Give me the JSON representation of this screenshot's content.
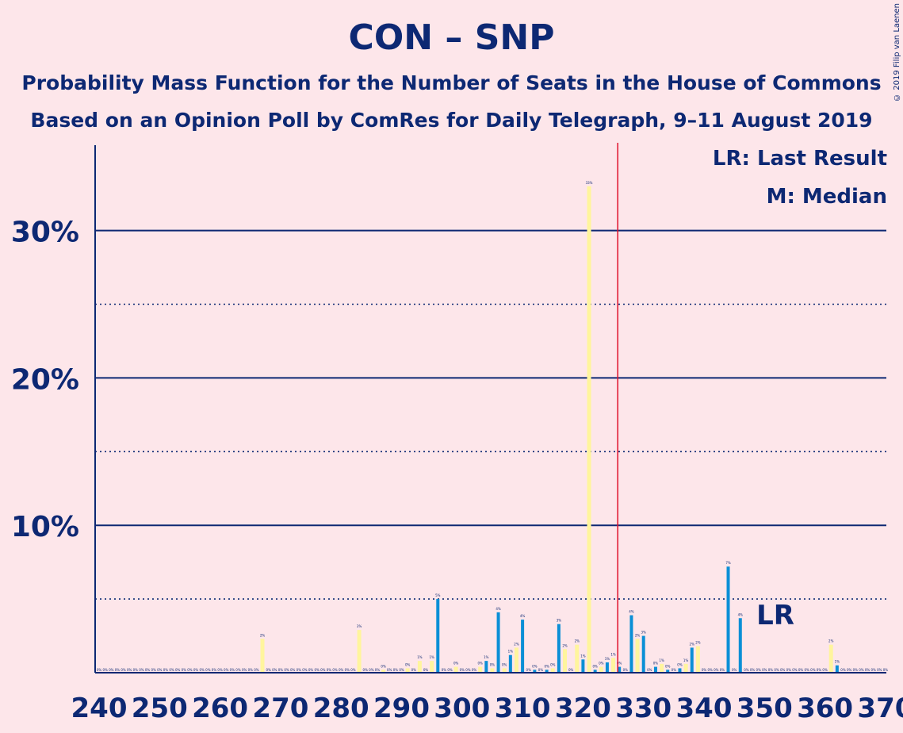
{
  "title": "CON – SNP",
  "subtitle1": "Probability Mass Function for the Number of Seats in the House of Commons",
  "subtitle2": "Based on an Opinion Poll by ComRes for Daily Telegraph, 9–11 August 2019",
  "copyright": "© 2019 Filip van Laenen",
  "legend": {
    "last_result": "LR: Last Result",
    "median": "M: Median"
  },
  "colors": {
    "background": "#fde6ea",
    "text": "#0d2873",
    "bar_blue": "#0a8fd6",
    "bar_yellow": "#fff59d",
    "last_result_line": "#e0102a"
  },
  "chart_data": {
    "type": "bar",
    "title": "CON – SNP",
    "xlim": [
      240,
      370
    ],
    "ylim": [
      0,
      36
    ],
    "x_ticks": [
      "240",
      "250",
      "260",
      "270",
      "280",
      "290",
      "300",
      "310",
      "320",
      "330",
      "340",
      "350",
      "360",
      "370"
    ],
    "y_ticks": [
      {
        "value": 10,
        "label": "10%"
      },
      {
        "value": 20,
        "label": "20%"
      },
      {
        "value": 30,
        "label": "30%"
      }
    ],
    "dotted_gridlines": [
      5,
      15,
      25
    ],
    "last_result_seat": 326,
    "last_result_label": "LR",
    "median_seat": 321,
    "series": [
      {
        "name": "CON – SNP",
        "points": [
          [
            267,
            2.3
          ],
          [
            283,
            2.9
          ],
          [
            287,
            0.2
          ],
          [
            291,
            0.3
          ],
          [
            293,
            0.8
          ],
          [
            295,
            0.8
          ],
          [
            296,
            5.0
          ],
          [
            299,
            0.4
          ],
          [
            303,
            0.4
          ],
          [
            304,
            0.8
          ],
          [
            305,
            0.3
          ],
          [
            306,
            4.1
          ],
          [
            307,
            0.3
          ],
          [
            308,
            1.2
          ],
          [
            309,
            1.7
          ],
          [
            310,
            3.6
          ],
          [
            312,
            0.2
          ],
          [
            314,
            0.2
          ],
          [
            315,
            0.3
          ],
          [
            316,
            3.3
          ],
          [
            317,
            1.6
          ],
          [
            319,
            1.9
          ],
          [
            320,
            0.9
          ],
          [
            321,
            33.0
          ],
          [
            322,
            0.2
          ],
          [
            323,
            0.4
          ],
          [
            324,
            0.7
          ],
          [
            325,
            1.0
          ],
          [
            326,
            0.4
          ],
          [
            328,
            3.9
          ],
          [
            329,
            2.3
          ],
          [
            330,
            2.5
          ],
          [
            332,
            0.4
          ],
          [
            333,
            0.6
          ],
          [
            334,
            0.2
          ],
          [
            336,
            0.3
          ],
          [
            337,
            0.6
          ],
          [
            338,
            1.7
          ],
          [
            339,
            1.8
          ],
          [
            344,
            7.2
          ],
          [
            346,
            3.7
          ],
          [
            361,
            1.9
          ],
          [
            362,
            0.5
          ]
        ]
      }
    ]
  }
}
